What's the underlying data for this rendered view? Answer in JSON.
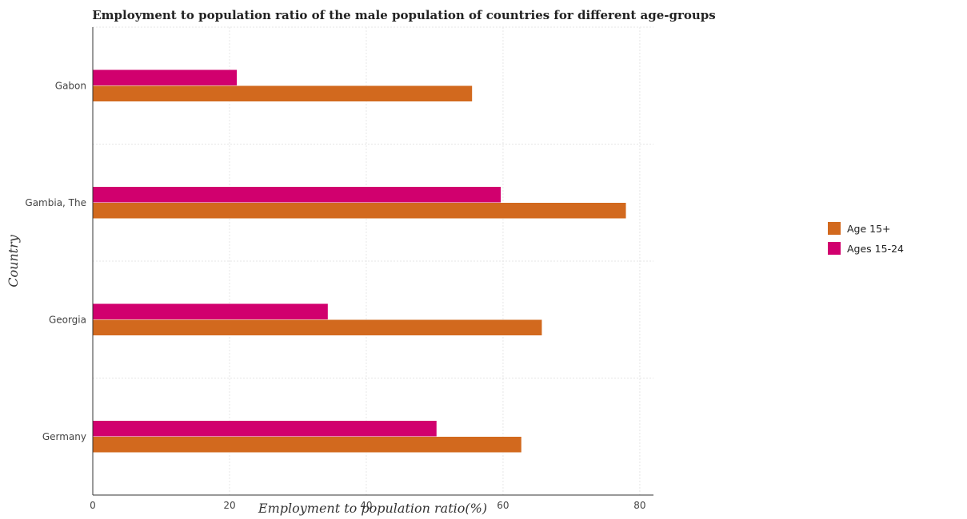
{
  "chart_data": {
    "type": "bar",
    "orientation": "horizontal",
    "title": "Employment to population ratio of the male population of countries for different age-groups",
    "xlabel": "Employment to population ratio(%)",
    "ylabel": "Country",
    "xlim": [
      0,
      82
    ],
    "xticks": [
      0,
      20,
      40,
      60,
      80
    ],
    "grid": true,
    "legend_position": "right",
    "categories": [
      "Gabon",
      "Gambia, The",
      "Georgia",
      "Germany"
    ],
    "series": [
      {
        "name": "Age 15+",
        "color": "#d2691e",
        "values": [
          55.5,
          78.0,
          65.7,
          62.7
        ]
      },
      {
        "name": "Ages 15-24",
        "color": "#d1006e",
        "values": [
          21.1,
          59.7,
          34.4,
          50.3
        ]
      }
    ]
  }
}
